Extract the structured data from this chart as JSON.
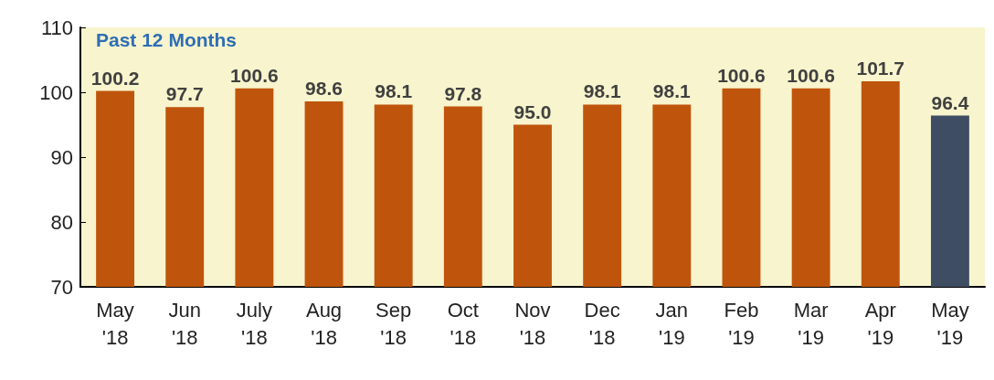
{
  "chart_data": {
    "type": "bar",
    "title": "Past 12 Months",
    "categories": [
      "May\n'18",
      "Jun\n'18",
      "July\n'18",
      "Aug\n'18",
      "Sep\n'18",
      "Oct\n'18",
      "Nov\n'18",
      "Dec\n'18",
      "Jan\n'19",
      "Feb\n'19",
      "Mar\n'19",
      "Apr\n'19",
      "May\n'19"
    ],
    "values": [
      100.2,
      97.7,
      100.6,
      98.6,
      98.1,
      97.8,
      95.0,
      98.1,
      98.1,
      100.6,
      100.6,
      101.7,
      96.4
    ],
    "colors": [
      "#bf550c",
      "#bf550c",
      "#bf550c",
      "#bf550c",
      "#bf550c",
      "#bf550c",
      "#bf550c",
      "#bf550c",
      "#bf550c",
      "#bf550c",
      "#bf550c",
      "#bf550c",
      "#3f4d63"
    ],
    "value_labels": [
      "100.2",
      "97.7",
      "100.6",
      "98.6",
      "98.1",
      "97.8",
      "95.0",
      "98.1",
      "98.1",
      "100.6",
      "100.6",
      "101.7",
      "96.4"
    ],
    "ylim": [
      70,
      110
    ],
    "yticks": [
      70,
      80,
      90,
      100,
      110
    ],
    "grid": false
  }
}
